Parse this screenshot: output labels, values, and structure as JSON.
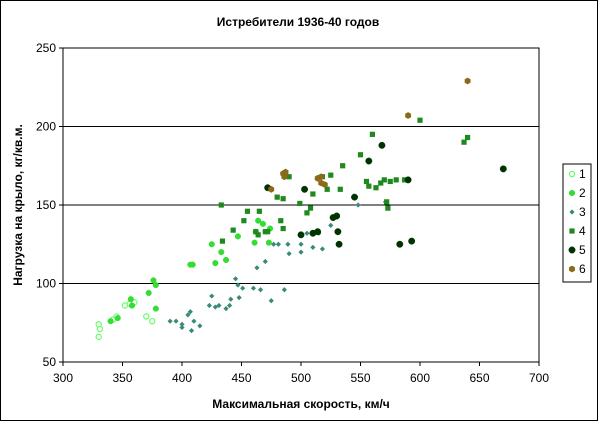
{
  "chart_data": {
    "type": "scatter",
    "title": "Истребители 1936-40 годов",
    "xlabel": "Максимальная скорость, км/ч",
    "ylabel": "Нагрузка на крыло, кг/кв.м.",
    "xlim": [
      300,
      700
    ],
    "ylim": [
      50,
      250
    ],
    "x_ticks": [
      300,
      350,
      400,
      450,
      500,
      550,
      600,
      650,
      700
    ],
    "y_ticks": [
      50,
      100,
      150,
      200,
      250
    ],
    "grid": "horizontal",
    "legend": "right",
    "series": [
      {
        "name": "1",
        "color": "#66ff66",
        "marker": "open-circle",
        "points": [
          [
            330,
            66
          ],
          [
            331,
            71
          ],
          [
            330,
            74
          ],
          [
            342,
            77
          ],
          [
            345,
            79
          ],
          [
            352,
            86
          ],
          [
            356,
            87
          ],
          [
            360,
            88
          ],
          [
            370,
            79
          ],
          [
            375,
            76
          ]
        ]
      },
      {
        "name": "2",
        "color": "#33dd33",
        "marker": "circle",
        "points": [
          [
            340,
            76
          ],
          [
            346,
            78
          ],
          [
            357,
            90
          ],
          [
            358,
            86
          ],
          [
            372,
            94
          ],
          [
            376,
            102
          ],
          [
            378,
            99
          ],
          [
            378,
            84
          ],
          [
            407,
            112
          ],
          [
            409,
            112
          ],
          [
            425,
            125
          ],
          [
            428,
            113
          ],
          [
            433,
            120
          ],
          [
            437,
            115
          ],
          [
            447,
            130
          ],
          [
            461,
            126
          ],
          [
            462,
            133
          ],
          [
            468,
            138
          ],
          [
            473,
            126
          ],
          [
            474,
            135
          ],
          [
            464,
            140
          ]
        ]
      },
      {
        "name": "3",
        "color": "#3a8a7a",
        "marker": "diamond",
        "points": [
          [
            390,
            76
          ],
          [
            395,
            76
          ],
          [
            400,
            72
          ],
          [
            400,
            74
          ],
          [
            405,
            80
          ],
          [
            407,
            82
          ],
          [
            408,
            70
          ],
          [
            410,
            76
          ],
          [
            415,
            73
          ],
          [
            423,
            86
          ],
          [
            425,
            92
          ],
          [
            428,
            85
          ],
          [
            431,
            86
          ],
          [
            437,
            84
          ],
          [
            440,
            86
          ],
          [
            441,
            90
          ],
          [
            445,
            103
          ],
          [
            447,
            99
          ],
          [
            448,
            91
          ],
          [
            451,
            97
          ],
          [
            460,
            97
          ],
          [
            463,
            110
          ],
          [
            466,
            96
          ],
          [
            470,
            114
          ],
          [
            475,
            89
          ],
          [
            477,
            125
          ],
          [
            481,
            125
          ],
          [
            486,
            96
          ],
          [
            489,
            125
          ],
          [
            490,
            119
          ],
          [
            500,
            120
          ],
          [
            500,
            125
          ],
          [
            505,
            132
          ],
          [
            510,
            123
          ],
          [
            515,
            132
          ],
          [
            518,
            122
          ],
          [
            525,
            137
          ],
          [
            548,
            150
          ],
          [
            571,
            152
          ]
        ]
      },
      {
        "name": "4",
        "color": "#1e8a1e",
        "marker": "square",
        "points": [
          [
            433,
            150
          ],
          [
            434,
            127
          ],
          [
            443,
            134
          ],
          [
            452,
            140
          ],
          [
            455,
            146
          ],
          [
            462,
            133
          ],
          [
            464,
            131
          ],
          [
            465,
            146
          ],
          [
            470,
            133
          ],
          [
            472,
            133
          ],
          [
            480,
            155
          ],
          [
            483,
            140
          ],
          [
            485,
            154
          ],
          [
            485,
            135
          ],
          [
            490,
            168
          ],
          [
            499,
            151
          ],
          [
            505,
            145
          ],
          [
            508,
            148
          ],
          [
            510,
            157
          ],
          [
            518,
            168
          ],
          [
            522,
            160
          ],
          [
            525,
            169
          ],
          [
            533,
            160
          ],
          [
            535,
            175
          ],
          [
            550,
            182
          ],
          [
            555,
            165
          ],
          [
            557,
            162
          ],
          [
            560,
            195
          ],
          [
            563,
            161
          ],
          [
            567,
            164
          ],
          [
            570,
            166
          ],
          [
            572,
            152
          ],
          [
            573,
            148
          ],
          [
            575,
            165
          ],
          [
            580,
            166
          ],
          [
            587,
            166
          ],
          [
            600,
            204
          ],
          [
            637,
            190
          ],
          [
            640,
            193
          ]
        ]
      },
      {
        "name": "5",
        "color": "#003300",
        "marker": "filled-circle",
        "points": [
          [
            472,
            161
          ],
          [
            500,
            131
          ],
          [
            503,
            160
          ],
          [
            510,
            132
          ],
          [
            514,
            133
          ],
          [
            527,
            142
          ],
          [
            530,
            143
          ],
          [
            531,
            133
          ],
          [
            532,
            125
          ],
          [
            545,
            155
          ],
          [
            557,
            178
          ],
          [
            568,
            188
          ],
          [
            583,
            125
          ],
          [
            590,
            166
          ],
          [
            593,
            127
          ],
          [
            670,
            173
          ]
        ]
      },
      {
        "name": "6",
        "color": "#8b6b1a",
        "marker": "hexagon",
        "points": [
          [
            475,
            160
          ],
          [
            485,
            170
          ],
          [
            486,
            168
          ],
          [
            487,
            171
          ],
          [
            514,
            167
          ],
          [
            517,
            168
          ],
          [
            520,
            163
          ],
          [
            517,
            164
          ],
          [
            590,
            207
          ],
          [
            640,
            229
          ]
        ]
      }
    ]
  }
}
